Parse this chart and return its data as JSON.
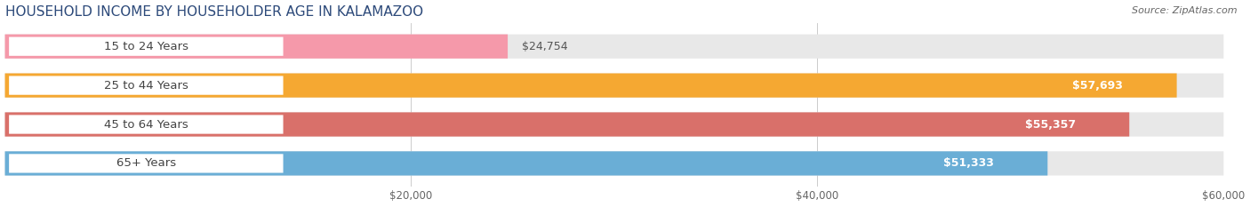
{
  "title": "HOUSEHOLD INCOME BY HOUSEHOLDER AGE IN KALAMAZOO",
  "source": "Source: ZipAtlas.com",
  "categories": [
    "15 to 24 Years",
    "25 to 44 Years",
    "45 to 64 Years",
    "65+ Years"
  ],
  "values": [
    24754,
    57693,
    55357,
    51333
  ],
  "bar_colors": [
    "#f599aa",
    "#f5a832",
    "#d9706a",
    "#6aaed6"
  ],
  "bar_bg_color": "#e8e8e8",
  "value_label_colors": [
    "#555555",
    "#ffffff",
    "#ffffff",
    "#ffffff"
  ],
  "xlim": [
    0,
    60000
  ],
  "xticks": [
    20000,
    40000,
    60000
  ],
  "xtick_labels": [
    "$20,000",
    "$40,000",
    "$60,000"
  ],
  "figsize": [
    14.06,
    2.33
  ],
  "dpi": 100,
  "title_fontsize": 11,
  "bar_height": 0.62,
  "bar_label_fontsize": 9,
  "category_fontsize": 9.5,
  "source_fontsize": 8
}
